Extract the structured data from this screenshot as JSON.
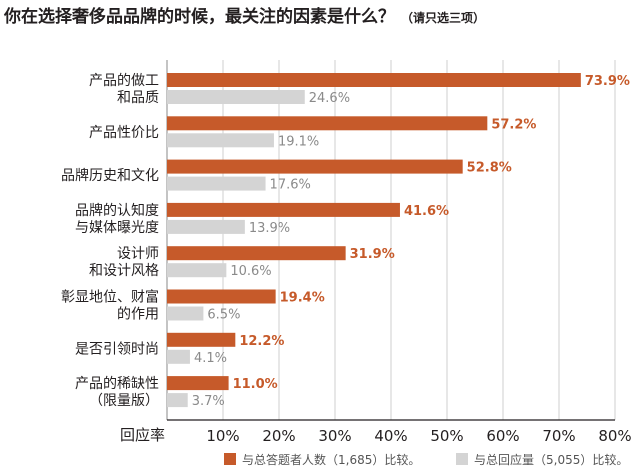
{
  "title": {
    "main": "你在选择奢侈品品牌的时候，最关注的因素是什么？",
    "note": "（请只选三项）"
  },
  "chart_data": {
    "type": "bar",
    "orientation": "horizontal",
    "categories": [
      [
        "产品的做工",
        "和品质"
      ],
      [
        "产品性价比"
      ],
      [
        "品牌历史和文化"
      ],
      [
        "品牌的认知度",
        "与媒体曝光度"
      ],
      [
        "设计师",
        "和设计风格"
      ],
      [
        "彰显地位、财富",
        "的作用"
      ],
      [
        "是否引领时尚"
      ],
      [
        "产品的稀缺性",
        "（限量版）"
      ]
    ],
    "series": [
      {
        "name": "与总答题者人数（1,685）比较。",
        "color": "#c65a2a",
        "values": [
          73.9,
          57.2,
          52.8,
          41.6,
          31.9,
          19.4,
          12.2,
          11.0
        ],
        "labels": [
          "73.9%",
          "57.2%",
          "52.8%",
          "41.6%",
          "31.9%",
          "19.4%",
          "12.2%",
          "11.0%"
        ]
      },
      {
        "name": "与总回应量（5,055）比较。",
        "color": "#d4d4d4",
        "values": [
          24.6,
          19.1,
          17.6,
          13.9,
          10.6,
          6.5,
          4.1,
          3.7
        ],
        "labels": [
          "24.6%",
          "19.1%",
          "17.6%",
          "13.9%",
          "10.6%",
          "6.5%",
          "4.1%",
          "3.7%"
        ]
      }
    ],
    "xlim": [
      0,
      80
    ],
    "xaxis_label": "回应率",
    "xticks": [
      "10%",
      "20%",
      "30%",
      "40%",
      "50%",
      "60%",
      "70%",
      "80%"
    ],
    "xtick_values": [
      10,
      20,
      30,
      40,
      50,
      60,
      70,
      80
    ],
    "grid": true,
    "legend_position": "bottom"
  }
}
